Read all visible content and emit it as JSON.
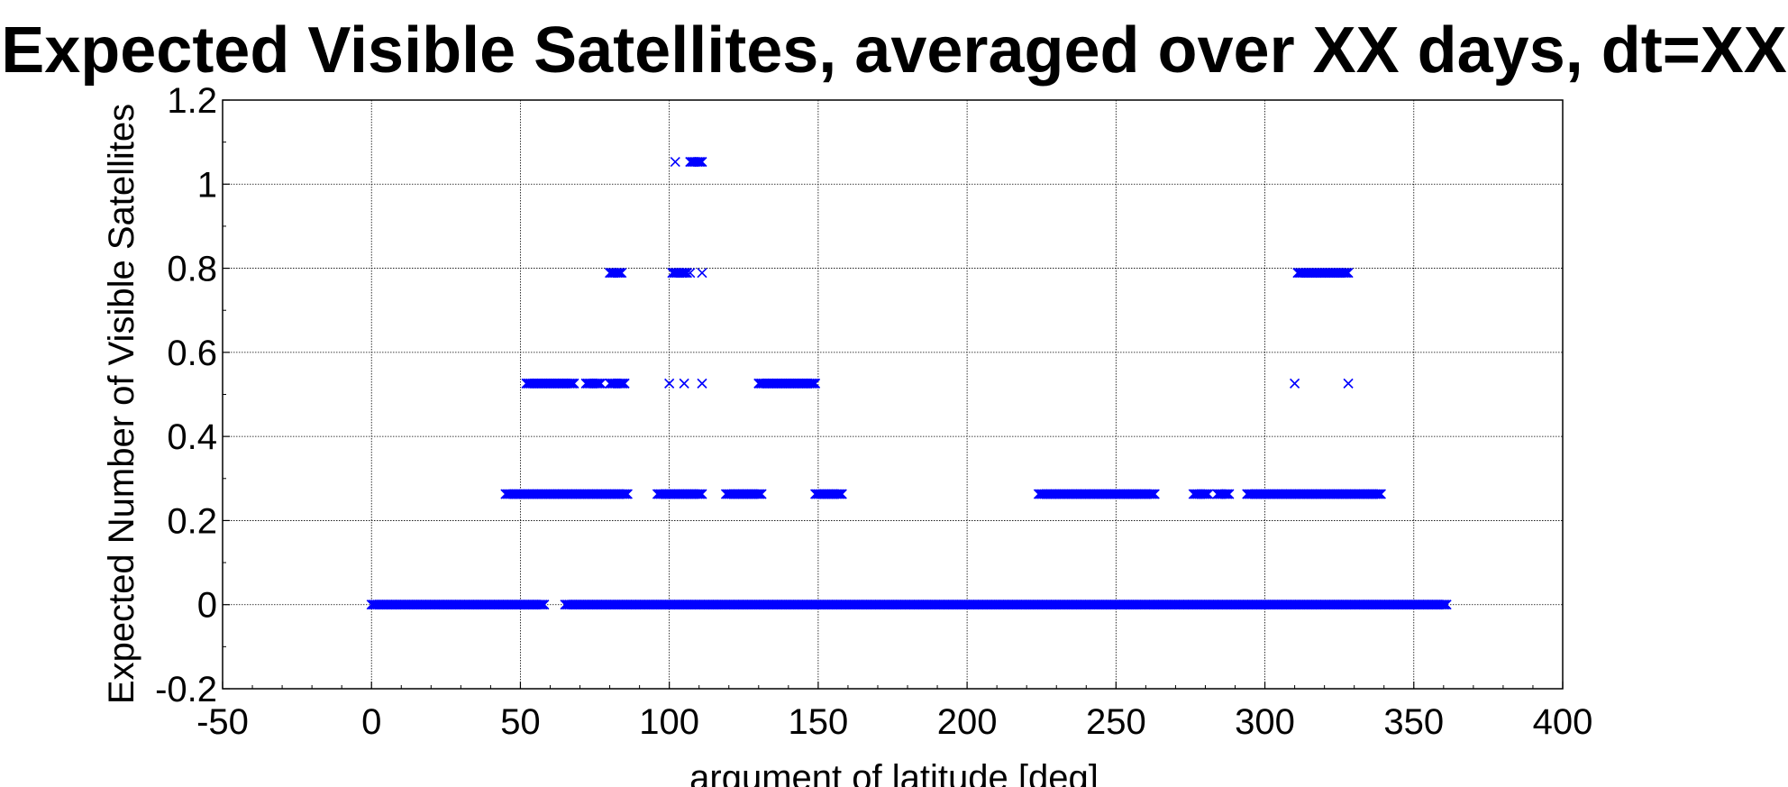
{
  "chart_data": {
    "type": "scatter",
    "title": "Expected Visible Satellites, averaged over XX days, dt=XX",
    "xlabel": "argument of latitude [deg]",
    "ylabel": "Expected Number of Visible Satellites",
    "xlim": [
      -50,
      400
    ],
    "ylim": [
      -0.2,
      1.2
    ],
    "xticks": [
      -50,
      0,
      50,
      100,
      150,
      200,
      250,
      300,
      350,
      400
    ],
    "yticks": [
      -0.2,
      0,
      0.2,
      0.4,
      0.6,
      0.8,
      1,
      1.2
    ],
    "xtick_labels": [
      "-50",
      "0",
      "50",
      "100",
      "150",
      "200",
      "250",
      "300",
      "350",
      "400"
    ],
    "ytick_labels": [
      "-0.2",
      "0",
      "0.2",
      "0.4",
      "0.6",
      "0.8",
      "1",
      "1.2"
    ],
    "grid": true,
    "marker": "x",
    "marker_color": "#0000ff",
    "series": [
      {
        "segments": [
          {
            "y": 0,
            "x_start": 0,
            "x_end": 58
          },
          {
            "y": 0,
            "x_start": 65,
            "x_end": 361
          },
          {
            "y": 0.263,
            "x_start": 45,
            "x_end": 86
          },
          {
            "y": 0.263,
            "x_start": 96,
            "x_end": 111
          },
          {
            "y": 0.263,
            "x_start": 119,
            "x_end": 131
          },
          {
            "y": 0.263,
            "x_start": 149,
            "x_end": 158
          },
          {
            "y": 0.263,
            "x_start": 224,
            "x_end": 263
          },
          {
            "y": 0.263,
            "x_start": 276,
            "x_end": 281
          },
          {
            "y": 0.263,
            "x_start": 284,
            "x_end": 288
          },
          {
            "y": 0.263,
            "x_start": 294,
            "x_end": 339
          },
          {
            "y": 0.526,
            "x_start": 52,
            "x_end": 68
          },
          {
            "y": 0.526,
            "x_start": 72,
            "x_end": 77
          },
          {
            "y": 0.526,
            "x_start": 80,
            "x_end": 85
          },
          {
            "y": 0.526,
            "x_start": 130,
            "x_end": 149
          },
          {
            "y": 0.789,
            "x_start": 80,
            "x_end": 84
          },
          {
            "y": 0.789,
            "x_start": 101,
            "x_end": 106
          },
          {
            "y": 0.789,
            "x_start": 311,
            "x_end": 328
          },
          {
            "y": 1.053,
            "x_start": 107,
            "x_end": 111
          }
        ],
        "points": [
          {
            "x": 100,
            "y": 0.526
          },
          {
            "x": 105,
            "y": 0.526
          },
          {
            "x": 111,
            "y": 0.526
          },
          {
            "x": 107,
            "y": 0.789
          },
          {
            "x": 111,
            "y": 0.789
          },
          {
            "x": 102,
            "y": 1.053
          },
          {
            "x": 310,
            "y": 0.526
          },
          {
            "x": 328,
            "y": 0.526
          }
        ]
      }
    ]
  }
}
